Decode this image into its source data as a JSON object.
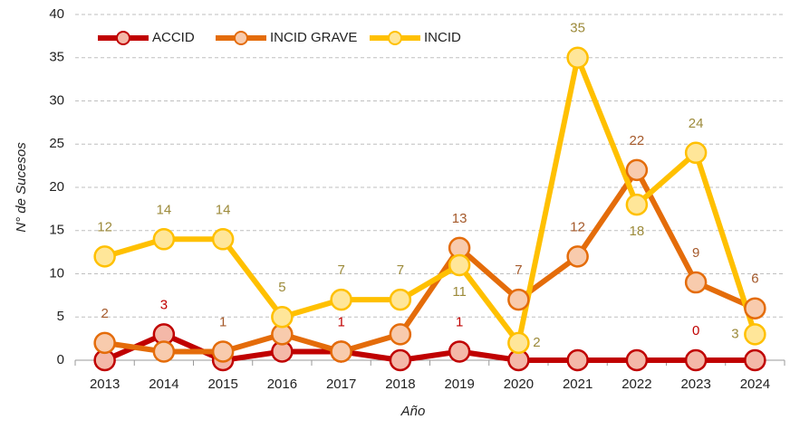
{
  "chart_data": {
    "type": "line",
    "x_label": "Año",
    "y_label": "N° de Sucesos",
    "categories": [
      "2013",
      "2014",
      "2015",
      "2016",
      "2017",
      "2018",
      "2019",
      "2020",
      "2021",
      "2022",
      "2023",
      "2024"
    ],
    "series": [
      {
        "name": "ACCID",
        "color": "#c00000",
        "marker_fill": "#f4b8a8",
        "label_color": "#c00000",
        "values": [
          0,
          3,
          0,
          1,
          1,
          0,
          1,
          0,
          0,
          0,
          0,
          0
        ],
        "value_labels": [
          null,
          "3",
          null,
          null,
          "1",
          null,
          "1",
          null,
          null,
          null,
          "0",
          null
        ]
      },
      {
        "name": "INCID GRAVE",
        "color": "#e46c0a",
        "marker_fill": "#f8cbad",
        "label_color": "#a5592a",
        "values": [
          2,
          1,
          1,
          3,
          1,
          3,
          13,
          7,
          12,
          22,
          9,
          6
        ],
        "value_labels": [
          "2",
          null,
          "1",
          null,
          null,
          null,
          "13",
          "7",
          "12",
          "22",
          "9",
          "6"
        ]
      },
      {
        "name": "INCID",
        "color": "#ffc000",
        "marker_fill": "#ffe699",
        "label_color": "#9c8a3a",
        "values": [
          12,
          14,
          14,
          5,
          7,
          7,
          11,
          2,
          35,
          18,
          24,
          3
        ],
        "value_labels": [
          "12",
          "14",
          "14",
          "5",
          "7",
          "7",
          "11",
          "2",
          "35",
          "18",
          "24",
          "3"
        ]
      }
    ],
    "ylim": [
      0,
      40
    ],
    "yticks": [
      0,
      5,
      10,
      15,
      20,
      25,
      30,
      35,
      40
    ],
    "grid": true,
    "legend": "top-left"
  }
}
